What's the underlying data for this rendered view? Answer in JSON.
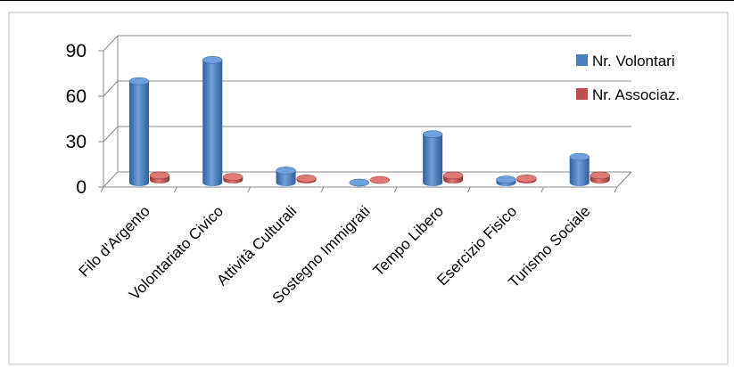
{
  "chart_data": {
    "type": "bar",
    "categories": [
      "Filo d'Argento",
      "Volontariato Civico",
      "Attività Culturali",
      "Sostegno Immigrati",
      "Tempo Libero",
      "Esercizio Fisico",
      "Turismo Sociale"
    ],
    "series": [
      {
        "name": "Nr. Volontari",
        "values": [
          67,
          81,
          8,
          0,
          32,
          2,
          17
        ],
        "color": "#4a7ebb"
      },
      {
        "name": "Nr. Associaz.",
        "values": [
          3,
          2,
          1,
          0,
          3,
          1,
          3
        ],
        "color": "#c0504d"
      }
    ],
    "yticks": [
      "0",
      "30",
      "60",
      "90"
    ],
    "ylim": [
      0,
      90
    ],
    "grid": true,
    "legend_position": "right"
  }
}
